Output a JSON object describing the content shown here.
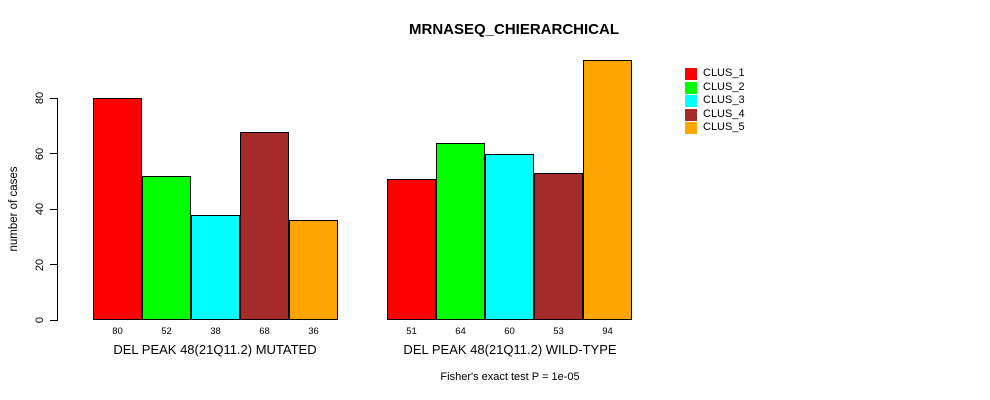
{
  "chart_data": {
    "type": "bar",
    "title": "MRNASEQ_CHIERARCHICAL",
    "ylabel": "number of cases",
    "xlabel": "",
    "categories": [
      "DEL PEAK 48(21Q11.2) MUTATED",
      "DEL PEAK 48(21Q11.2) WILD-TYPE"
    ],
    "series": [
      {
        "name": "CLUS_1",
        "color": "#ff0000",
        "values": [
          80,
          51
        ]
      },
      {
        "name": "CLUS_2",
        "color": "#00ff00",
        "values": [
          52,
          64
        ]
      },
      {
        "name": "CLUS_3",
        "color": "#00ffff",
        "values": [
          38,
          60
        ]
      },
      {
        "name": "CLUS_4",
        "color": "#a52a2a",
        "values": [
          68,
          53
        ]
      },
      {
        "name": "CLUS_5",
        "color": "#ffa500",
        "values": [
          36,
          94
        ]
      }
    ],
    "bar_value_labels": [
      [
        80,
        52,
        38,
        68,
        36
      ],
      [
        51,
        64,
        60,
        53,
        94
      ]
    ],
    "yticks": [
      0,
      20,
      40,
      60,
      80
    ],
    "ylim": [
      0,
      97
    ],
    "grid": false,
    "legend_position": "right",
    "annotation": "Fisher's exact test P = 1e-05"
  }
}
